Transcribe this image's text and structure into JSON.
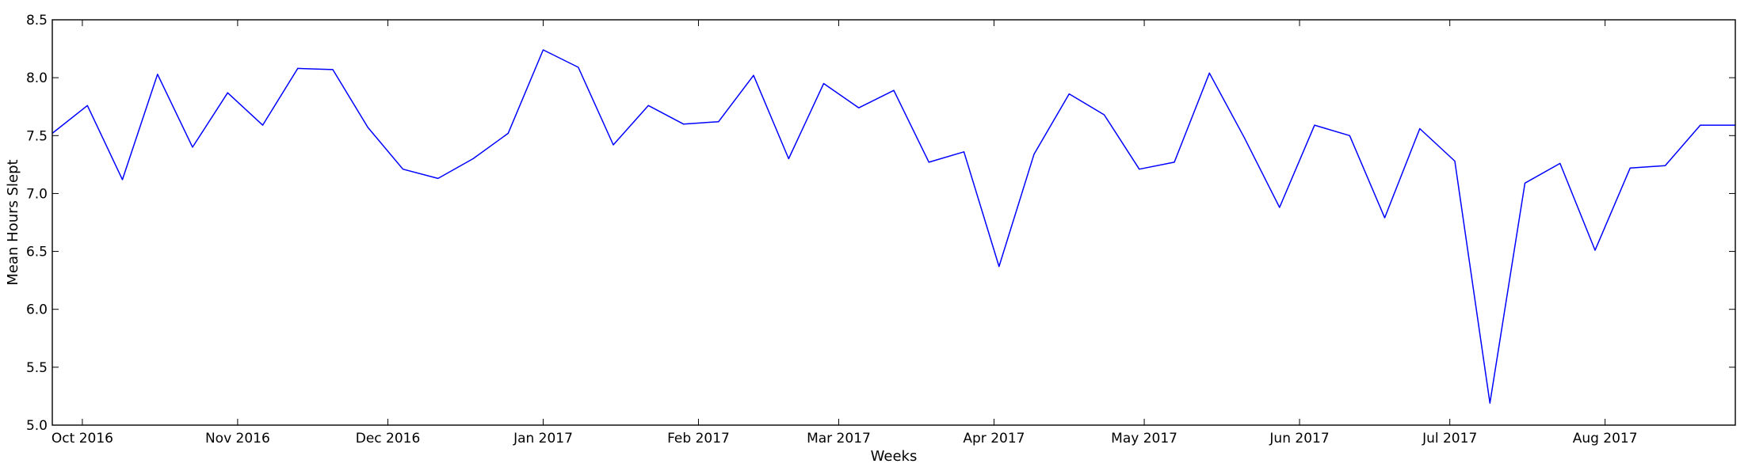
{
  "chart_data": {
    "type": "line",
    "title": "",
    "xlabel": "Weeks",
    "ylabel": "Mean Hours Slept",
    "x_start": "2016-09-25",
    "x_end": "2017-08-27",
    "ylim": [
      5.0,
      8.5
    ],
    "yticks": [
      "5.0",
      "5.5",
      "6.0",
      "6.5",
      "7.0",
      "7.5",
      "8.0",
      "8.5"
    ],
    "xticks": [
      {
        "date": "2016-10-01",
        "label": "Oct 2016"
      },
      {
        "date": "2016-11-01",
        "label": "Nov 2016"
      },
      {
        "date": "2016-12-01",
        "label": "Dec 2016"
      },
      {
        "date": "2017-01-01",
        "label": "Jan 2017"
      },
      {
        "date": "2017-02-01",
        "label": "Feb 2017"
      },
      {
        "date": "2017-03-01",
        "label": "Mar 2017"
      },
      {
        "date": "2017-04-01",
        "label": "Apr 2017"
      },
      {
        "date": "2017-05-01",
        "label": "May 2017"
      },
      {
        "date": "2017-06-01",
        "label": "Jun 2017"
      },
      {
        "date": "2017-07-01",
        "label": "Jul 2017"
      },
      {
        "date": "2017-08-01",
        "label": "Aug 2017"
      }
    ],
    "grid": false,
    "series": [
      {
        "color": "#0000ff",
        "x": [
          "2016-09-25",
          "2016-10-02",
          "2016-10-09",
          "2016-10-16",
          "2016-10-23",
          "2016-10-30",
          "2016-11-06",
          "2016-11-13",
          "2016-11-20",
          "2016-11-27",
          "2016-12-04",
          "2016-12-11",
          "2016-12-18",
          "2016-12-25",
          "2017-01-01",
          "2017-01-08",
          "2017-01-15",
          "2017-01-22",
          "2017-01-29",
          "2017-02-05",
          "2017-02-12",
          "2017-02-19",
          "2017-02-26",
          "2017-03-05",
          "2017-03-12",
          "2017-03-19",
          "2017-03-26",
          "2017-04-02",
          "2017-04-09",
          "2017-04-16",
          "2017-04-23",
          "2017-04-30",
          "2017-05-07",
          "2017-05-14",
          "2017-05-21",
          "2017-05-28",
          "2017-06-04",
          "2017-06-11",
          "2017-06-18",
          "2017-06-25",
          "2017-07-02",
          "2017-07-09",
          "2017-07-16",
          "2017-07-23",
          "2017-07-30",
          "2017-08-06",
          "2017-08-13",
          "2017-08-20",
          "2017-08-27"
        ],
        "values": [
          7.52,
          7.76,
          7.12,
          8.03,
          7.4,
          7.87,
          7.59,
          8.08,
          8.07,
          7.57,
          7.21,
          7.13,
          7.3,
          7.52,
          8.24,
          8.09,
          7.42,
          7.76,
          7.6,
          7.62,
          8.02,
          7.3,
          7.95,
          7.74,
          7.89,
          7.27,
          7.36,
          6.37,
          7.34,
          7.86,
          7.68,
          7.21,
          7.27,
          8.04,
          7.48,
          6.88,
          7.59,
          7.5,
          6.79,
          7.56,
          7.28,
          5.19,
          7.09,
          7.26,
          6.51,
          7.22,
          7.24,
          7.59,
          7.59
        ]
      }
    ]
  }
}
